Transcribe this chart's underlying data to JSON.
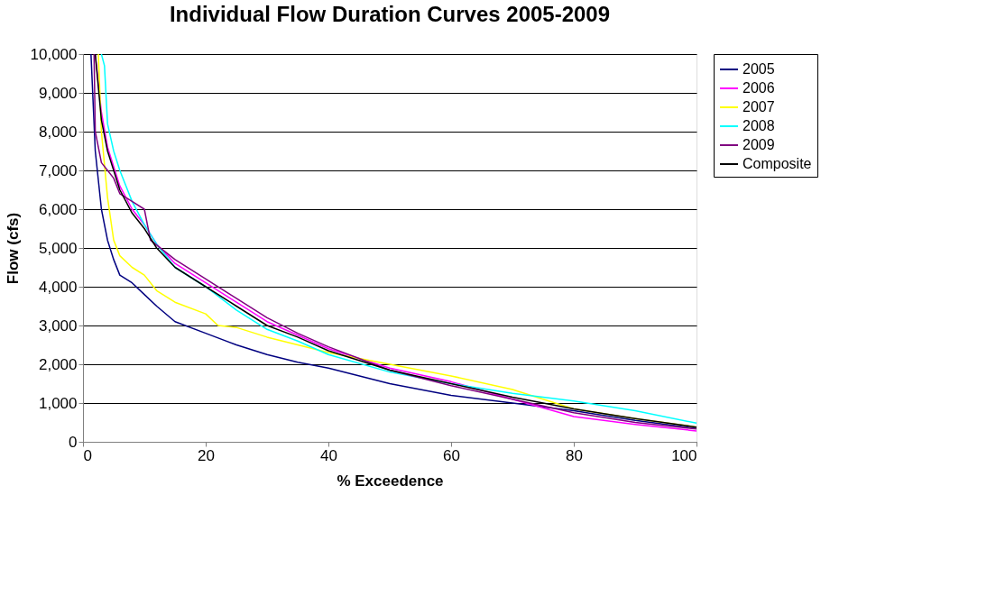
{
  "chart_data": {
    "type": "line",
    "title": "Individual Flow Duration Curves 2005-2009",
    "xlabel": "% Exceedence",
    "ylabel": "Flow (cfs)",
    "xlim": [
      0,
      100
    ],
    "xticks": [
      0,
      20,
      40,
      60,
      80,
      100
    ],
    "ylim": [
      0,
      10000
    ],
    "yticks": [
      {
        "value": 0,
        "label": "0"
      },
      {
        "value": 1000,
        "label": "1,000"
      },
      {
        "value": 2000,
        "label": "2,000"
      },
      {
        "value": 3000,
        "label": "3,000"
      },
      {
        "value": 4000,
        "label": "4,000"
      },
      {
        "value": 5000,
        "label": "5,000"
      },
      {
        "value": 6000,
        "label": "6,000"
      },
      {
        "value": 7000,
        "label": "7,000"
      },
      {
        "value": 8000,
        "label": "8,000"
      },
      {
        "value": 9000,
        "label": "9,000"
      },
      {
        "value": 10000,
        "label": "10,000"
      }
    ],
    "grid": "y",
    "legend": "right",
    "line_style": "solid",
    "marker": "none",
    "series": [
      {
        "name": "2005",
        "color": "#000080",
        "x": [
          1.3,
          2,
          3,
          4,
          5,
          6,
          8,
          10,
          12,
          15,
          20,
          25,
          30,
          35,
          40,
          50,
          60,
          70,
          80,
          90,
          100
        ],
        "values": [
          10000,
          7500,
          6000,
          5200,
          4700,
          4300,
          4100,
          3800,
          3500,
          3100,
          2800,
          2500,
          2250,
          2050,
          1900,
          1500,
          1200,
          1000,
          800,
          550,
          350
        ]
      },
      {
        "name": "2006",
        "color": "#ff00ff",
        "x": [
          2,
          3,
          4,
          5,
          6,
          8,
          10,
          12,
          15,
          20,
          25,
          30,
          35,
          40,
          50,
          60,
          70,
          80,
          90,
          100
        ],
        "values": [
          10000,
          8500,
          7600,
          7100,
          6600,
          6000,
          5600,
          5100,
          4600,
          4100,
          3600,
          3100,
          2750,
          2400,
          1900,
          1550,
          1100,
          650,
          450,
          280
        ]
      },
      {
        "name": "2007",
        "color": "#ffff00",
        "x": [
          2.5,
          3,
          4,
          5,
          6,
          8,
          10,
          12,
          15,
          20,
          22,
          25,
          30,
          40,
          50,
          60,
          70,
          80,
          90,
          100
        ],
        "values": [
          10000,
          8000,
          6300,
          5200,
          4800,
          4500,
          4300,
          3900,
          3600,
          3300,
          3000,
          2950,
          2700,
          2300,
          2000,
          1700,
          1350,
          850,
          600,
          380
        ]
      },
      {
        "name": "2008",
        "color": "#00ffff",
        "x": [
          3,
          3.5,
          4,
          5,
          6,
          8,
          10,
          12,
          15,
          20,
          25,
          30,
          35,
          40,
          50,
          60,
          70,
          80,
          90,
          100
        ],
        "values": [
          10000,
          9700,
          8200,
          7500,
          7000,
          6200,
          5600,
          5100,
          4500,
          4000,
          3400,
          2900,
          2600,
          2250,
          1800,
          1500,
          1250,
          1050,
          800,
          480
        ]
      },
      {
        "name": "2009",
        "color": "#800080",
        "x": [
          1.8,
          2,
          3,
          4,
          5,
          6,
          8,
          10,
          11,
          15,
          20,
          25,
          30,
          35,
          40,
          50,
          60,
          70,
          80,
          90,
          100
        ],
        "values": [
          10000,
          8000,
          7200,
          7000,
          6800,
          6400,
          6200,
          6000,
          5200,
          4700,
          4200,
          3700,
          3200,
          2800,
          2450,
          1850,
          1450,
          1100,
          750,
          500,
          330
        ]
      },
      {
        "name": "Composite",
        "color": "#000000",
        "x": [
          2,
          3,
          4,
          5,
          6,
          8,
          10,
          12,
          15,
          20,
          25,
          30,
          35,
          40,
          45,
          50,
          60,
          70,
          80,
          90,
          100
        ],
        "values": [
          10000,
          8300,
          7500,
          7000,
          6500,
          5900,
          5500,
          5000,
          4500,
          4000,
          3500,
          3000,
          2700,
          2350,
          2100,
          1850,
          1500,
          1150,
          850,
          600,
          380
        ]
      }
    ]
  }
}
